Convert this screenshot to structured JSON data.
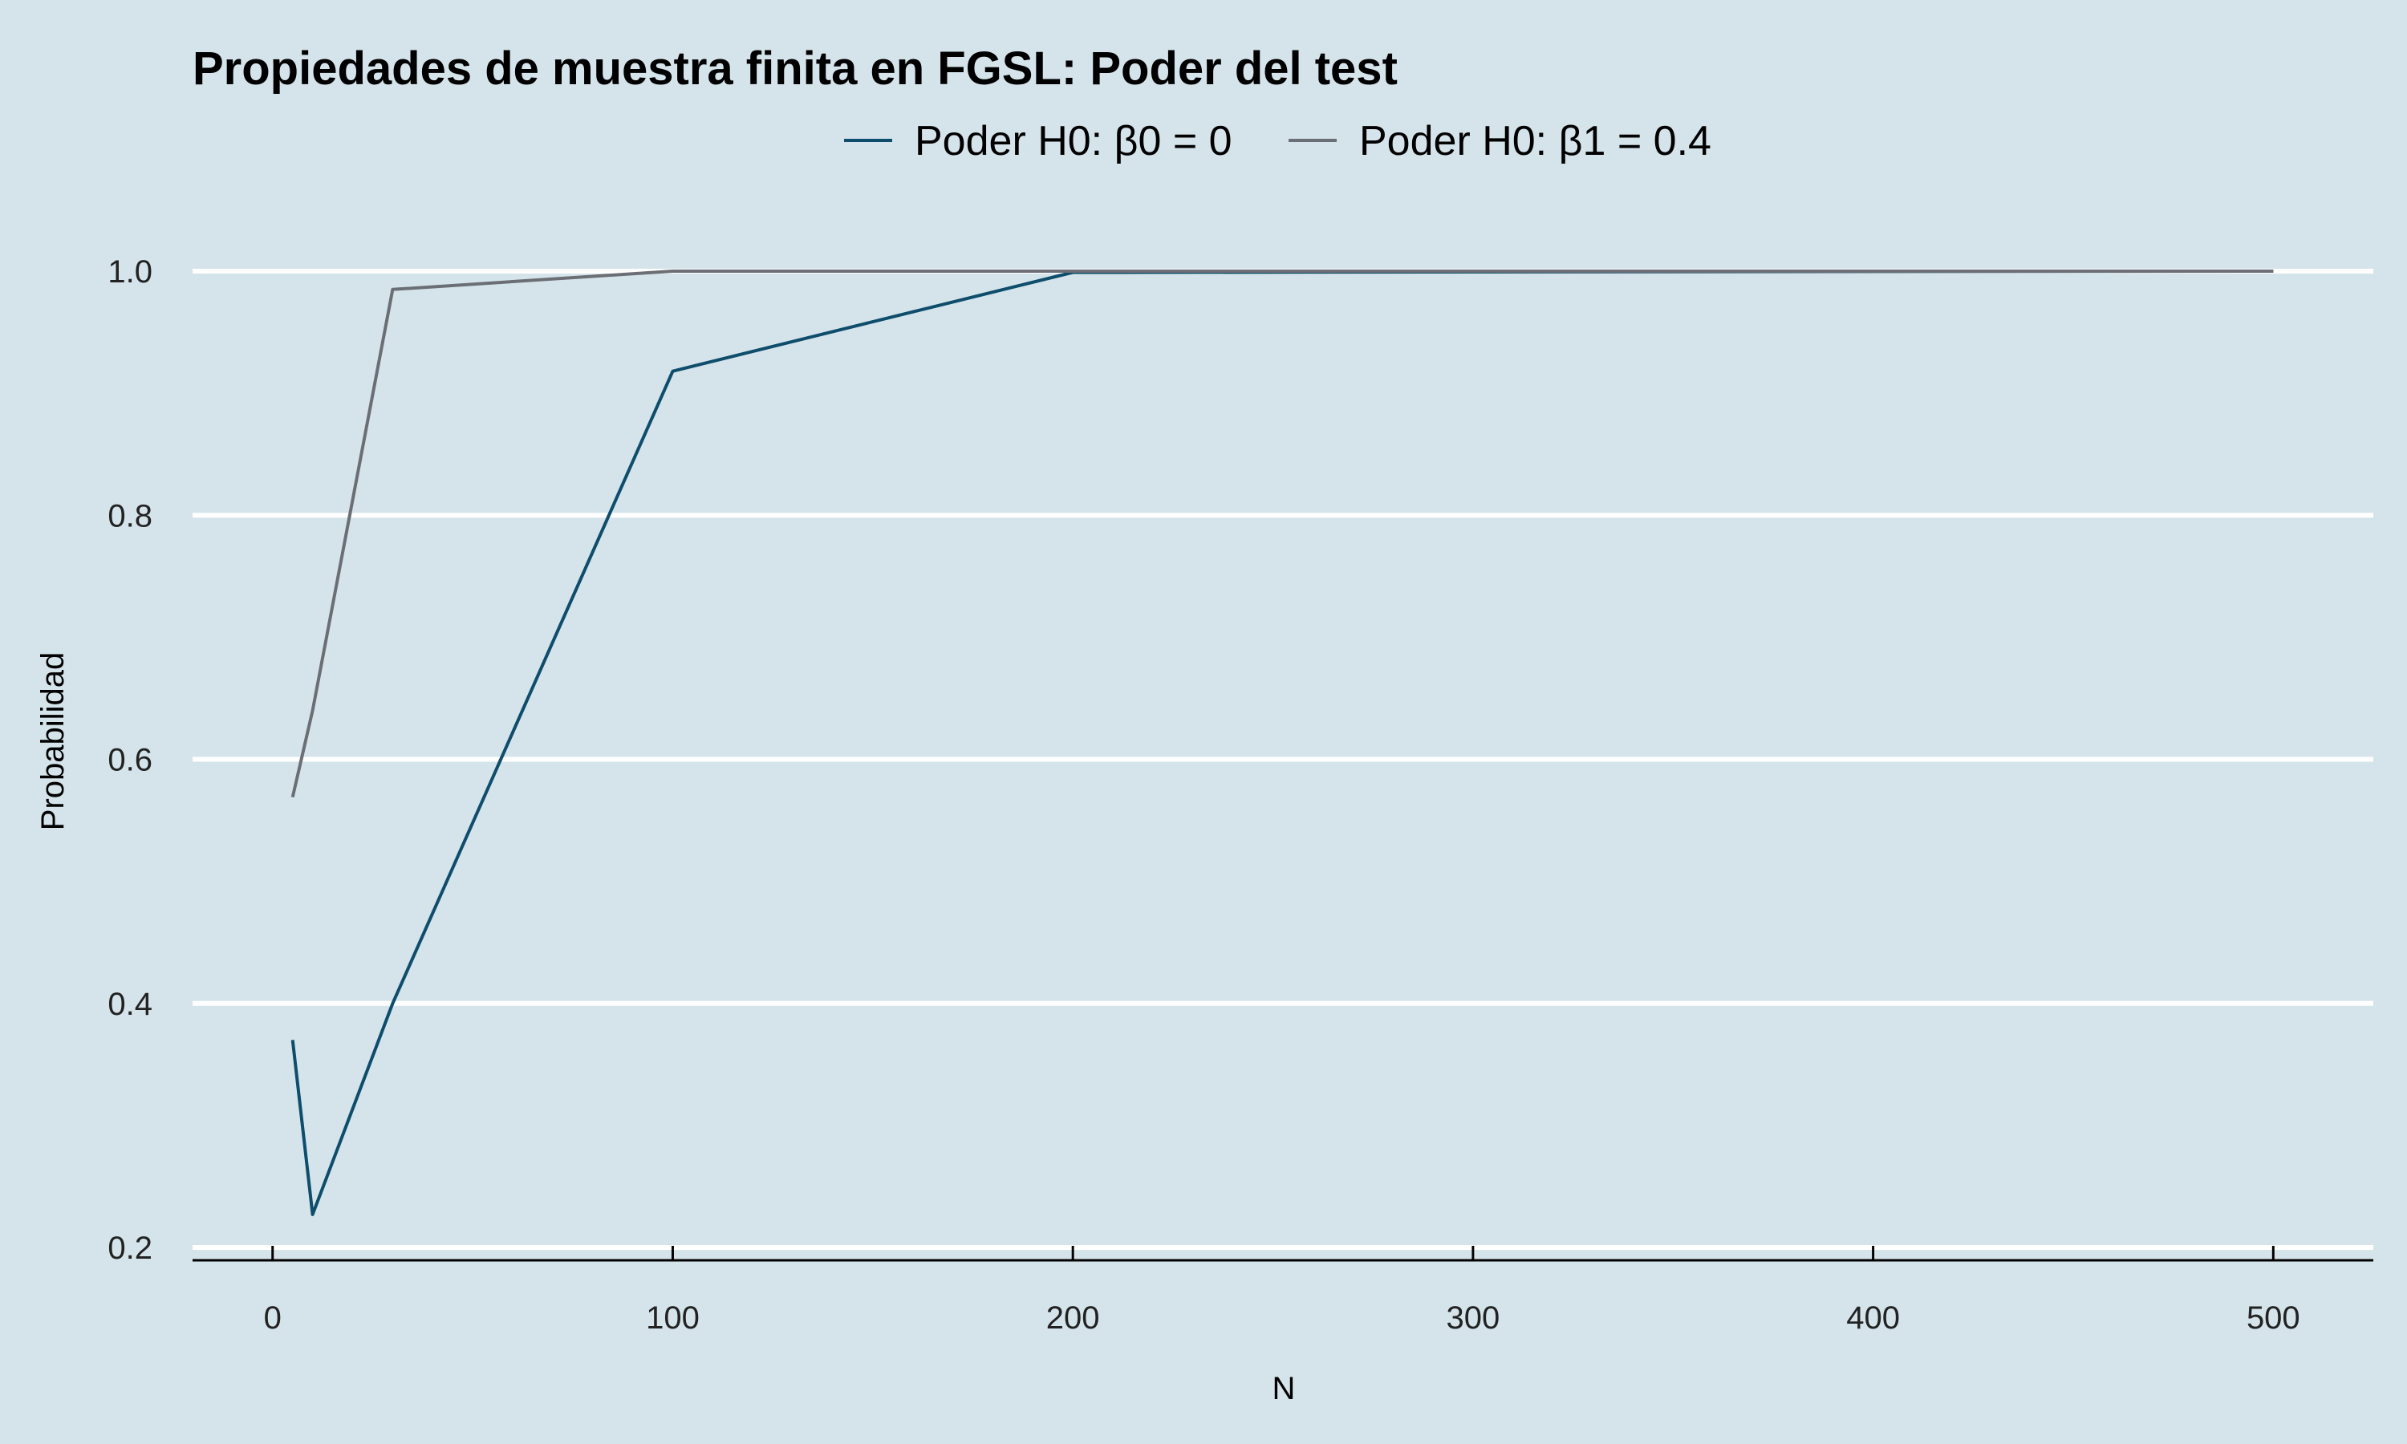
{
  "chart_data": {
    "type": "line",
    "title": "Propiedades de muestra finita en FGSL: Poder del test",
    "xlabel": "N",
    "ylabel": "Probabilidad",
    "xlim": [
      -20,
      525
    ],
    "ylim": [
      0.19,
      1.0
    ],
    "x_ticks": [
      0,
      100,
      200,
      300,
      400,
      500
    ],
    "y_ticks": [
      0.2,
      0.4,
      0.6,
      0.8,
      1.0
    ],
    "x_tick_labels": [
      "0",
      "100",
      "200",
      "300",
      "400",
      "500"
    ],
    "y_tick_labels": [
      "0.2",
      "0.4",
      "0.6",
      "0.8",
      "1.0"
    ],
    "grid": "horizontal",
    "legend_position": "top",
    "series": [
      {
        "name": "Poder H0: β0 = 0",
        "color": "#0e4d6b",
        "x": [
          5,
          10,
          30,
          100,
          200,
          500
        ],
        "y": [
          0.37,
          0.227,
          0.4,
          0.918,
          0.999,
          1.0
        ]
      },
      {
        "name": "Poder H0: β1 = 0.4",
        "color": "#6b6f75",
        "x": [
          5,
          10,
          30,
          100,
          200,
          500
        ],
        "y": [
          0.569,
          0.64,
          0.985,
          1.0,
          1.0,
          1.0
        ]
      }
    ]
  }
}
